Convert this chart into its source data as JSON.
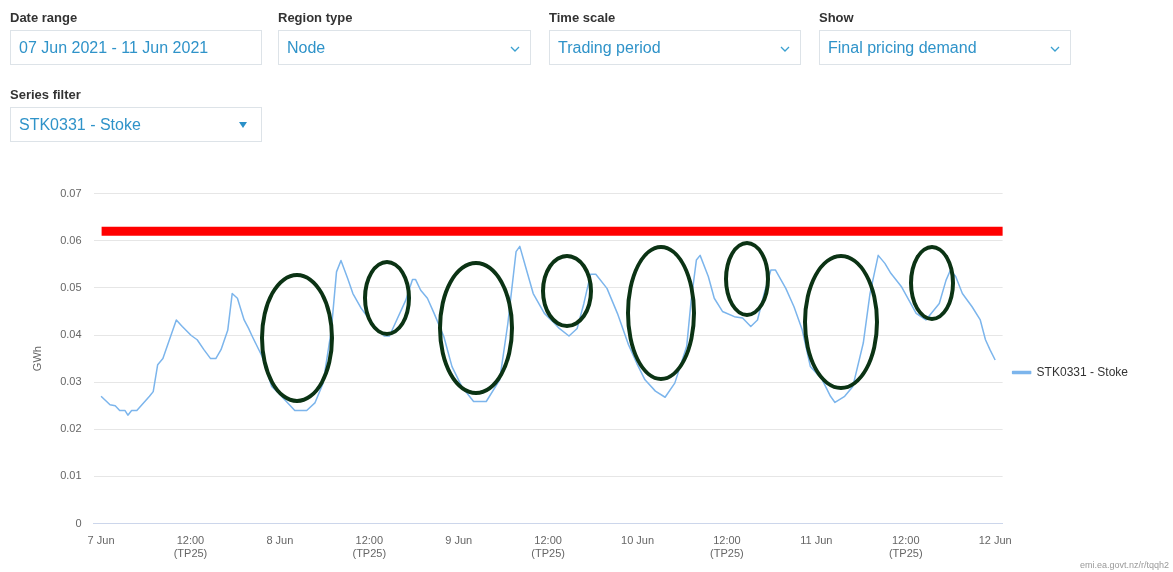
{
  "chart_data": {
    "type": "line",
    "ylabel": "GWh",
    "annotations": [
      "Date range",
      "07 Jun 2021 - 11 Jun 2021",
      "Region type",
      "Node",
      "Time scale",
      "Trading period",
      "Show",
      "Final pricing demand",
      "Series filter",
      "STK0331 - Stoke",
      "emi.ea.govt.nz/r/tqqh2"
    ],
    "xlim": [
      "2021-06-06T23:00",
      "2021-06-12T01:00"
    ],
    "xticks": [
      {
        "value": "2021-06-07",
        "label": "7 Jun"
      },
      {
        "value": "2021-06-07T12:00",
        "label": "12:00 (TP25)"
      },
      {
        "value": "2021-06-08",
        "label": "8 Jun"
      },
      {
        "value": "2021-06-08T12:00",
        "label": "12:00 (TP25)"
      },
      {
        "value": "2021-06-09",
        "label": "9 Jun"
      },
      {
        "value": "2021-06-09T12:00",
        "label": "12:00 (TP25)"
      },
      {
        "value": "2021-06-10",
        "label": "10 Jun"
      },
      {
        "value": "2021-06-10T12:00",
        "label": "12:00 (TP25)"
      },
      {
        "value": "2021-06-11",
        "label": "11 Jun"
      },
      {
        "value": "2021-06-11T12:00",
        "label": "12:00 (TP25)"
      },
      {
        "value": "2021-06-12",
        "label": "12 Jun"
      }
    ],
    "ylim": [
      0,
      0.07
    ],
    "yticks": [
      0,
      0.01,
      0.02,
      0.03,
      0.04,
      0.05,
      0.06,
      0.07
    ],
    "grid": "y",
    "legend": "right",
    "marker": "none",
    "line_style": "solid",
    "ref_lines": [
      {
        "axis": "y",
        "value": 0.062,
        "color": "#ff0000"
      }
    ],
    "series": [
      {
        "name": "STK0331 - Stoke",
        "color": "#7cb5ec",
        "x": [
          "2021-06-07T00:00",
          "2021-06-07T01:12",
          "2021-06-07T01:54",
          "2021-06-07T02:30",
          "2021-06-07T03:12",
          "2021-06-07T03:36",
          "2021-06-07T04:06",
          "2021-06-07T04:48",
          "2021-06-07T06:30",
          "2021-06-07T07:00",
          "2021-06-07T07:36",
          "2021-06-07T08:18",
          "2021-06-07T10:06",
          "2021-06-07T10:54",
          "2021-06-07T12:06",
          "2021-06-07T12:54",
          "2021-06-07T13:48",
          "2021-06-07T14:42",
          "2021-06-07T15:24",
          "2021-06-07T16:06",
          "2021-06-07T17:00",
          "2021-06-07T17:36",
          "2021-06-07T18:18",
          "2021-06-07T19:12",
          "2021-06-07T19:48",
          "2021-06-07T20:18",
          "2021-06-07T21:36",
          "2021-06-07T22:54",
          "2021-06-07T23:48",
          "2021-06-08T02:00",
          "2021-06-08T03:36",
          "2021-06-08T04:42",
          "2021-06-08T05:48",
          "2021-06-08T06:54",
          "2021-06-08T07:36",
          "2021-06-08T08:12",
          "2021-06-08T09:06",
          "2021-06-08T09:48",
          "2021-06-08T10:54",
          "2021-06-08T12:42",
          "2021-06-08T14:00",
          "2021-06-08T14:42",
          "2021-06-08T16:54",
          "2021-06-08T17:48",
          "2021-06-08T18:12",
          "2021-06-08T18:54",
          "2021-06-08T19:48",
          "2021-06-08T20:42",
          "2021-06-08T22:00",
          "2021-06-08T23:06",
          "2021-06-09T00:24",
          "2021-06-09T02:00",
          "2021-06-09T03:42",
          "2021-06-09T05:30",
          "2021-06-09T06:36",
          "2021-06-09T07:42",
          "2021-06-09T08:12",
          "2021-06-09T09:06",
          "2021-06-09T10:00",
          "2021-06-09T11:30",
          "2021-06-09T12:36",
          "2021-06-09T13:30",
          "2021-06-09T14:48",
          "2021-06-09T15:54",
          "2021-06-09T16:48",
          "2021-06-09T17:42",
          "2021-06-09T18:24",
          "2021-06-09T19:54",
          "2021-06-09T21:18",
          "2021-06-09T22:48",
          "2021-06-09T23:54",
          "2021-06-10T01:00",
          "2021-06-10T02:24",
          "2021-06-10T03:42",
          "2021-06-10T05:00",
          "2021-06-10T06:36",
          "2021-06-10T07:12",
          "2021-06-10T07:54",
          "2021-06-10T08:24",
          "2021-06-10T09:30",
          "2021-06-10T10:18",
          "2021-06-10T11:24",
          "2021-06-10T13:00",
          "2021-06-10T14:06",
          "2021-06-10T15:12",
          "2021-06-10T16:06",
          "2021-06-10T17:00",
          "2021-06-10T17:54",
          "2021-06-10T18:30",
          "2021-06-10T19:54",
          "2021-06-10T21:00",
          "2021-06-10T22:06",
          "2021-06-10T23:12",
          "2021-06-11T00:48",
          "2021-06-11T01:54",
          "2021-06-11T02:30",
          "2021-06-11T03:48",
          "2021-06-11T04:54",
          "2021-06-11T06:18",
          "2021-06-11T07:12",
          "2021-06-11T08:18",
          "2021-06-11T09:12",
          "2021-06-11T10:00",
          "2021-06-11T11:24",
          "2021-06-11T13:24",
          "2021-06-11T14:42",
          "2021-06-11T16:30",
          "2021-06-11T17:24",
          "2021-06-11T18:00",
          "2021-06-11T18:42",
          "2021-06-11T19:36",
          "2021-06-11T20:54",
          "2021-06-11T22:00",
          "2021-06-11T22:42",
          "2021-06-11T23:18",
          "2021-06-12T00:00"
        ],
        "values": [
          0.027,
          0.0252,
          0.025,
          0.024,
          0.024,
          0.023,
          0.024,
          0.024,
          0.027,
          0.028,
          0.0337,
          0.035,
          0.0432,
          0.0418,
          0.0399,
          0.039,
          0.0369,
          0.035,
          0.035,
          0.0369,
          0.041,
          0.0488,
          0.0478,
          0.0432,
          0.0414,
          0.0397,
          0.0355,
          0.0291,
          0.0277,
          0.024,
          0.024,
          0.0256,
          0.0298,
          0.041,
          0.0534,
          0.0558,
          0.052,
          0.0488,
          0.0457,
          0.0418,
          0.0398,
          0.0398,
          0.0474,
          0.0518,
          0.0518,
          0.0495,
          0.0478,
          0.0446,
          0.0397,
          0.0333,
          0.0291,
          0.0259,
          0.0259,
          0.0305,
          0.0425,
          0.0577,
          0.0588,
          0.0538,
          0.0488,
          0.0446,
          0.0429,
          0.0414,
          0.0398,
          0.0414,
          0.0467,
          0.0529,
          0.0529,
          0.0499,
          0.0446,
          0.0379,
          0.034,
          0.0305,
          0.0281,
          0.0268,
          0.0298,
          0.0376,
          0.0474,
          0.0559,
          0.0569,
          0.0524,
          0.0478,
          0.045,
          0.0439,
          0.0436,
          0.0418,
          0.0432,
          0.0488,
          0.0538,
          0.0538,
          0.0499,
          0.046,
          0.0411,
          0.0333,
          0.0305,
          0.027,
          0.0257,
          0.027,
          0.0291,
          0.0383,
          0.0488,
          0.0569,
          0.0552,
          0.0531,
          0.0503,
          0.0446,
          0.0432,
          0.0467,
          0.0516,
          0.0538,
          0.0524,
          0.0488,
          0.046,
          0.0432,
          0.039,
          0.0369,
          0.0347
        ]
      }
    ]
  }
}
